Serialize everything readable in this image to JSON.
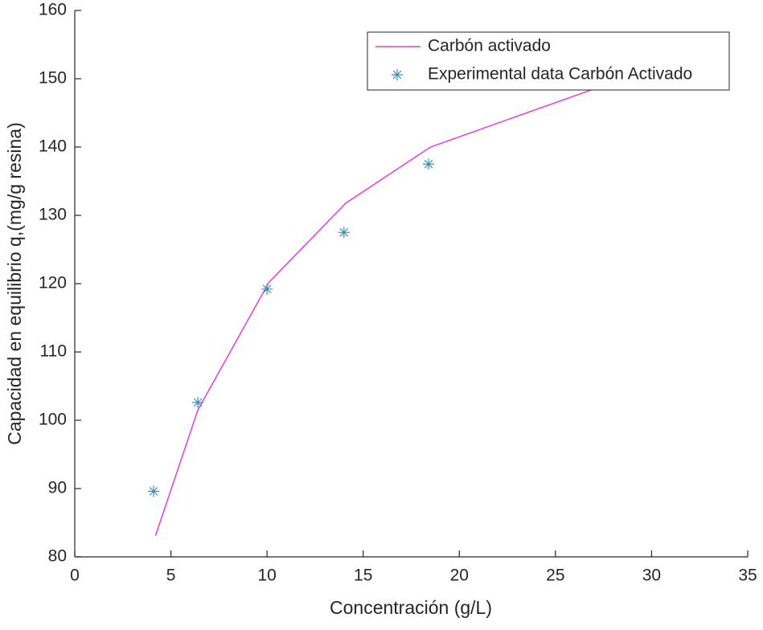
{
  "chart_data": {
    "type": "line",
    "xlabel": "Concentración (g/L)",
    "ylabel": "Capacidad en equilibrio q,(mg/g resina)",
    "xlim": [
      0,
      35
    ],
    "xticks": [
      0,
      5,
      10,
      15,
      20,
      25,
      30,
      35
    ],
    "ylim": [
      80,
      160
    ],
    "yticks": [
      80,
      90,
      100,
      110,
      120,
      130,
      140,
      150,
      160
    ],
    "legend": "northeast",
    "series": [
      {
        "name": "Carbón activado",
        "color": "#e23ee0",
        "marker": "none",
        "x": [
          4.2,
          6.4,
          10.1,
          14.1,
          18.5,
          29
        ],
        "values": [
          83.1,
          101.5,
          120.2,
          131.8,
          140,
          150.5
        ]
      },
      {
        "name": "Experimental data Carbón Activado",
        "color": "#3f8fb5",
        "marker": "star",
        "x": [
          4.1,
          6.4,
          10.0,
          14.0,
          18.4
        ],
        "values": [
          89.6,
          102.6,
          119.2,
          127.5,
          137.5
        ]
      }
    ]
  }
}
